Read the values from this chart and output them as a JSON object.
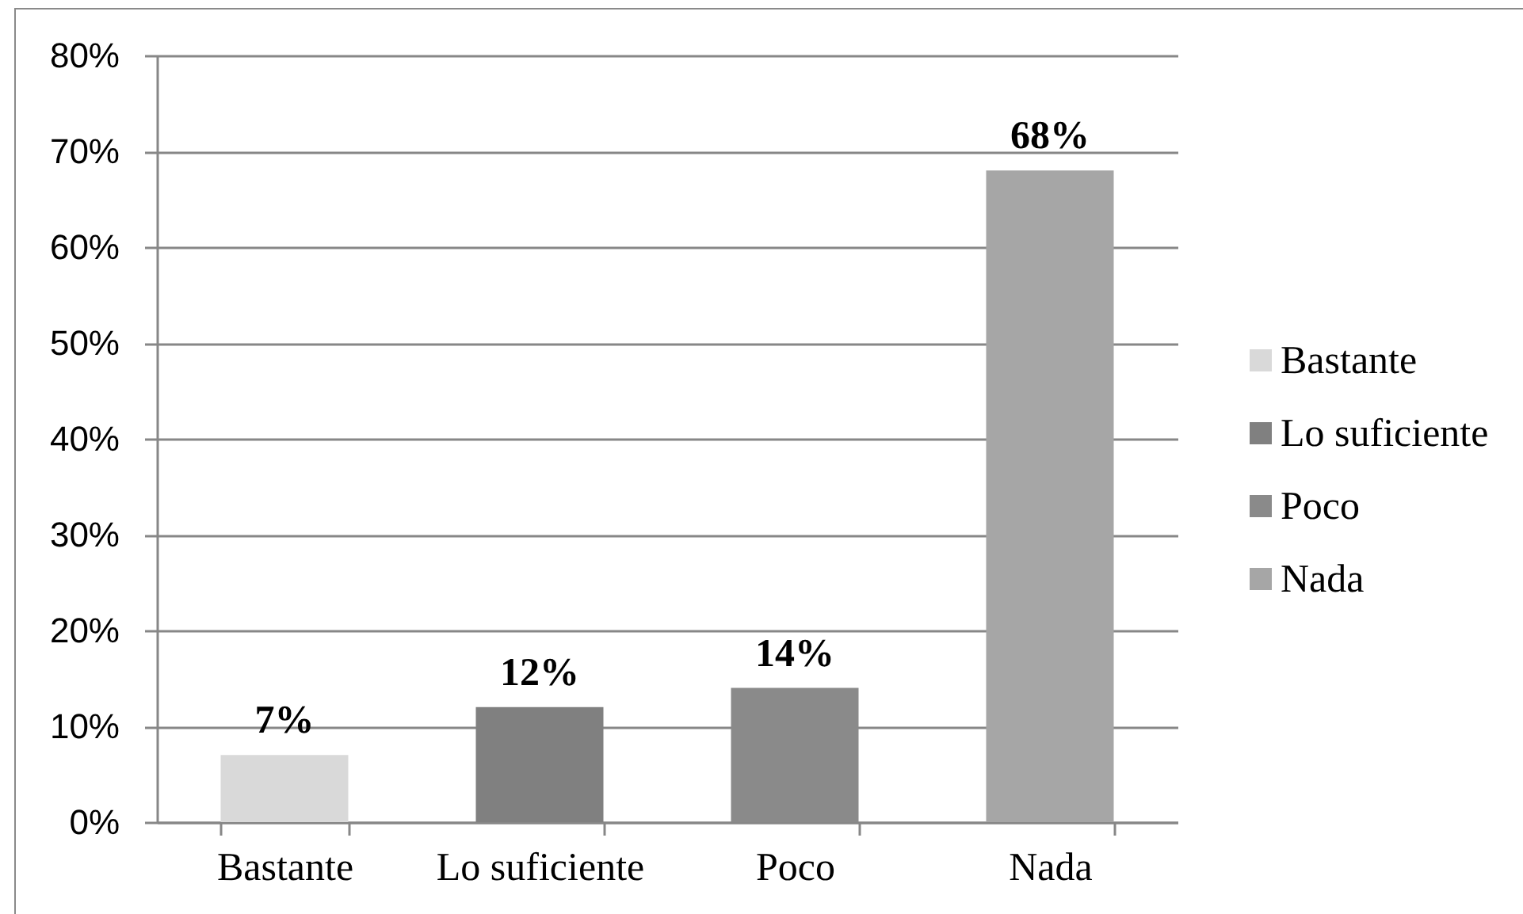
{
  "chart_data": {
    "type": "bar",
    "categories": [
      "Bastante",
      "Lo suficiente",
      "Poco",
      "Nada"
    ],
    "series": [
      {
        "name": "Bastante",
        "color": "#d9d9d9",
        "values": [
          7,
          null,
          null,
          null
        ],
        "value_labels": [
          "7%",
          null,
          null,
          null
        ]
      },
      {
        "name": "Lo suficiente",
        "color": "#808080",
        "values": [
          null,
          12,
          null,
          null
        ],
        "value_labels": [
          null,
          "12%",
          null,
          null
        ]
      },
      {
        "name": "Poco",
        "color": "#8a8a8a",
        "values": [
          null,
          null,
          14,
          null
        ],
        "value_labels": [
          null,
          null,
          "14%",
          null
        ]
      },
      {
        "name": "Nada",
        "color": "#a6a6a6",
        "values": [
          null,
          null,
          null,
          68
        ],
        "value_labels": [
          null,
          null,
          null,
          "68%"
        ]
      }
    ],
    "ylim": [
      0,
      80
    ],
    "yticks": [
      {
        "value": 0,
        "label": "0%"
      },
      {
        "value": 10,
        "label": "10%"
      },
      {
        "value": 20,
        "label": "20%"
      },
      {
        "value": 30,
        "label": "30%"
      },
      {
        "value": 40,
        "label": "40%"
      },
      {
        "value": 50,
        "label": "50%"
      },
      {
        "value": 60,
        "label": "60%"
      },
      {
        "value": 70,
        "label": "70%"
      },
      {
        "value": 80,
        "label": "80%"
      }
    ],
    "grid": "y",
    "legend": "right"
  }
}
